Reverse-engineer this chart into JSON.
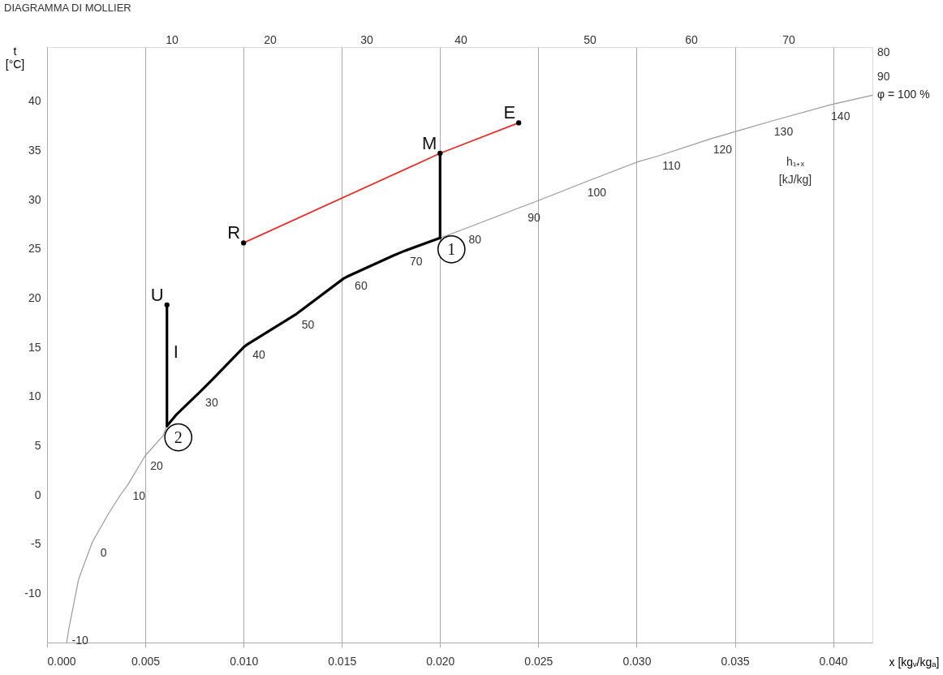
{
  "chart_data": {
    "type": "line",
    "title": "DIAGRAMMA DI MOLLIER",
    "xlabel": "x [kgᵥ/kgₐ]",
    "ylabel": "t\n[°C]",
    "xlim": [
      0,
      0.042
    ],
    "ylim": [
      -15,
      45.5
    ],
    "xticks": [
      {
        "value": 0,
        "label": "0.000"
      },
      0.005,
      {
        "value": 0.01,
        "label": "0.010"
      },
      0.015,
      {
        "value": 0.02,
        "label": "0.020"
      },
      0.025,
      {
        "value": 0.03,
        "label": "0.030"
      },
      0.035,
      {
        "value": 0.04,
        "label": "0.040"
      }
    ],
    "yticks": [
      -10,
      -5,
      0,
      5,
      10,
      15,
      20,
      25,
      30,
      35,
      40
    ],
    "grid": "x",
    "series": [
      {
        "name": "φ = 100 %",
        "color": "#9a9a9a",
        "x": [
          0.001,
          0.0011,
          0.0016,
          0.0023,
          0.0031,
          0.0037,
          0.0041,
          0.005,
          0.0059,
          0.0061,
          0.013,
          0.02,
          0.0212,
          0.0242,
          0.025,
          0.0274,
          0.03,
          0.0312,
          0.0338,
          0.035,
          0.0369,
          0.0398,
          0.04,
          0.042
        ],
        "values": [
          -15,
          -13.7,
          -8.6,
          -4.8,
          -2,
          -0.1,
          1.0,
          4,
          6,
          7,
          null,
          26.1,
          27.0,
          29.3,
          29.9,
          31.8,
          33.8,
          34.5,
          36.2,
          36.9,
          38.0,
          39.6,
          39.7,
          40.6
        ]
      },
      {
        "color": "#e0312b",
        "marker": "circle",
        "x": [
          0.01,
          0.02,
          0.024
        ],
        "values": [
          25.6,
          34.7,
          37.8
        ]
      },
      {
        "color": "#000000",
        "x": [
          0.02,
          0.02
        ],
        "values": [
          34.7,
          26.1
        ]
      },
      {
        "color": "#000000",
        "x": [
          0.02,
          0.0182,
          0.0176,
          0.0154,
          0.0151,
          0.0127,
          0.0102,
          0.01,
          0.0084,
          0.0078,
          0.0066,
          0.0061
        ],
        "values": [
          26.1,
          24.8,
          24.3,
          22.3,
          22.0,
          18.4,
          15.3,
          15.0,
          11.7,
          10.5,
          8.2,
          7.0
        ]
      },
      {
        "color": "#000000",
        "x": [
          0.0061,
          0.0061
        ],
        "values": [
          7.0,
          19.3
        ]
      },
      {
        "type": "scatter",
        "color": "#000000",
        "marker": "circle",
        "x": [
          0.0061
        ],
        "values": [
          19.3
        ]
      }
    ],
    "annotations": [
      "10",
      "20",
      "30",
      "40",
      "50",
      "60",
      "70",
      "80",
      "90",
      {
        "text": "-10",
        "x": 0.0011,
        "y": -13.7
      },
      {
        "text": "0",
        "x": 0.0023,
        "y": -4.8
      },
      {
        "text": "10",
        "x": 0.0041,
        "y": 1.0
      },
      {
        "text": "20",
        "x": 0.005,
        "y": 4
      },
      {
        "text": "30",
        "x": 0.0078,
        "y": 10.5
      },
      {
        "text": "40",
        "x": 0.0102,
        "y": 15.3
      },
      {
        "text": "50",
        "x": 0.0127,
        "y": 18.4
      },
      {
        "text": "60",
        "x": 0.0154,
        "y": 22.3
      },
      {
        "text": "70",
        "x": 0.0182,
        "y": 24.8
      },
      {
        "text": "80",
        "x": 0.0212,
        "y": 27.0
      },
      {
        "text": "90",
        "x": 0.0242,
        "y": 29.3
      },
      {
        "text": "100",
        "x": 0.0274,
        "y": 31.8
      },
      {
        "text": "110",
        "x": 0.0312,
        "y": 34.5
      },
      {
        "text": "120",
        "x": 0.0338,
        "y": 36.2
      },
      {
        "text": "130",
        "x": 0.0369,
        "y": 38.0
      },
      {
        "text": "140",
        "x": 0.0398,
        "y": 39.6
      },
      "h₁₊ₓ",
      "[kJ/kg]",
      {
        "text": "R",
        "x": 0.01,
        "y": 25.6
      },
      {
        "text": "E",
        "x": 0.024,
        "y": 37.8
      },
      {
        "text": "M",
        "x": 0.02,
        "y": 34.7
      },
      {
        "text": "U",
        "x": 0.0061,
        "y": 19.3
      },
      {
        "text": "I",
        "x": 0.0061,
        "y": 14.5
      },
      {
        "text": "1",
        "x": 0.02,
        "y": 26.1
      },
      {
        "text": "2",
        "x": 0.0061,
        "y": 7.0
      }
    ]
  }
}
